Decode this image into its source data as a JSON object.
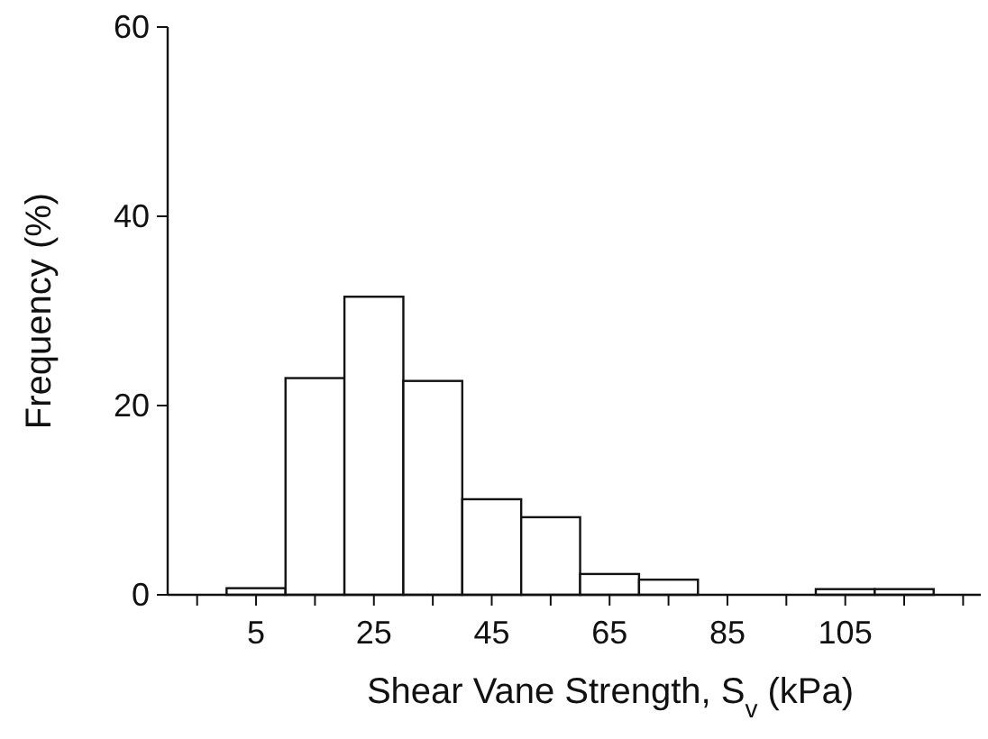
{
  "chart_data": {
    "type": "histogram",
    "xlabel": "Shear Vane Strength, S$_{v}$  (kPa)",
    "ylabel": "Frequency (%)",
    "bins": [
      0,
      10,
      20,
      30,
      40,
      50,
      60,
      70,
      80,
      90,
      100,
      110,
      120
    ],
    "values": [
      0.7,
      22.9,
      31.5,
      22.6,
      10.1,
      8.2,
      2.2,
      1.6,
      0,
      0,
      0.6,
      0.6
    ],
    "color": "#ffffff",
    "xlim": [
      -10,
      128
    ],
    "xticks": [
      {
        "value": -5,
        "label": null
      },
      5,
      {
        "value": 15,
        "label": null
      },
      25,
      {
        "value": 35,
        "label": null
      },
      45,
      {
        "value": 55,
        "label": null
      },
      65,
      {
        "value": 75,
        "label": null
      },
      85,
      {
        "value": 95,
        "label": null
      },
      105,
      {
        "value": 115,
        "label": null
      },
      {
        "value": 125,
        "label": null
      }
    ],
    "ylim": [
      0,
      60
    ],
    "yticks": [
      0,
      20,
      40,
      60
    ],
    "grid": false
  }
}
